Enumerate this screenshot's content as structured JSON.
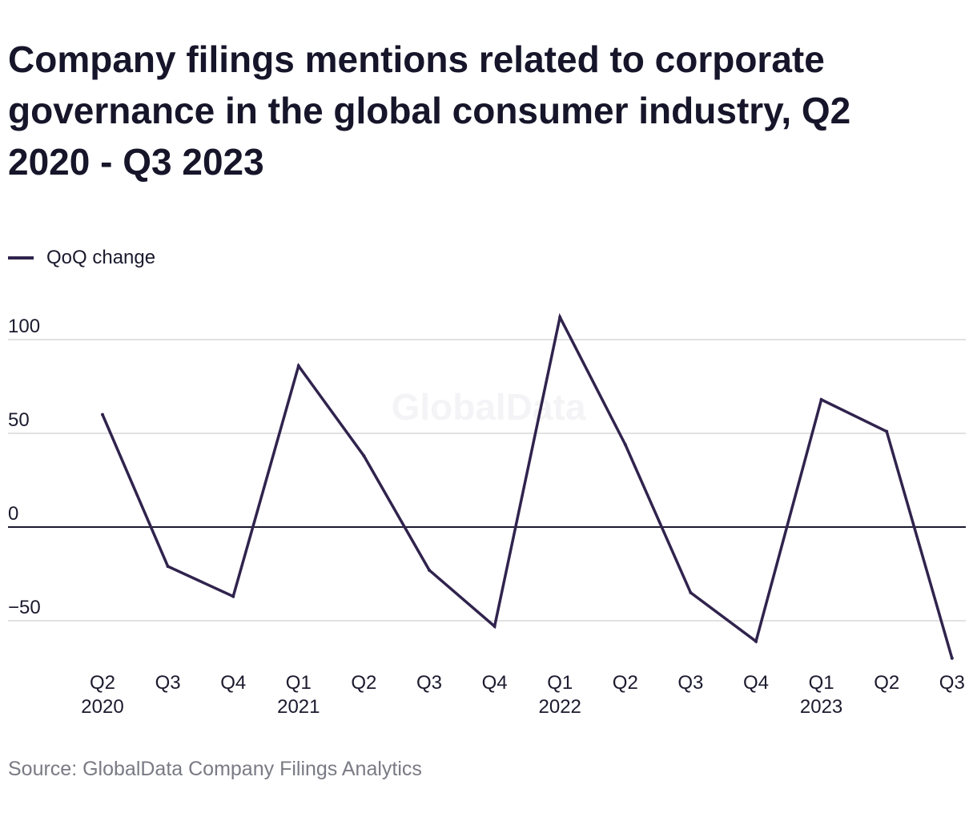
{
  "title": "Company filings mentions related to corporate governance in the global consumer industry, Q2 2020 - Q3 2023",
  "legend": {
    "label": "QoQ change"
  },
  "watermark": "GlobalData",
  "source": "Source: GlobalData Company Filings Analytics",
  "colors": {
    "series": "#30234d",
    "grid": "#d9d9d9",
    "zero_line": "#1b1a2e",
    "text": "#1b1a2e",
    "source_text": "#7a7a85"
  },
  "chart_data": {
    "type": "line",
    "title": "Company filings mentions related to corporate governance in the global consumer industry, Q2 2020 - Q3 2023",
    "xlabel": "",
    "ylabel": "",
    "categories": [
      [
        "Q2",
        "2020"
      ],
      [
        "Q3",
        ""
      ],
      [
        "Q4",
        ""
      ],
      [
        "Q1",
        "2021"
      ],
      [
        "Q2",
        ""
      ],
      [
        "Q3",
        ""
      ],
      [
        "Q4",
        ""
      ],
      [
        "Q1",
        "2022"
      ],
      [
        "Q2",
        ""
      ],
      [
        "Q3",
        ""
      ],
      [
        "Q4",
        ""
      ],
      [
        "Q1",
        "2023"
      ],
      [
        "Q2",
        ""
      ],
      [
        "Q3",
        ""
      ]
    ],
    "series": [
      {
        "name": "QoQ change",
        "values": [
          60,
          -21,
          -37,
          86,
          38,
          -23,
          -53,
          112,
          44,
          -35,
          -61,
          68,
          51,
          -70
        ]
      }
    ],
    "y_ticks": [
      100,
      50,
      0,
      -50
    ],
    "y_tick_labels": [
      "100",
      "50",
      "0",
      "−50"
    ],
    "ylim": [
      -70,
      112
    ],
    "grid": true,
    "legend_position": "top-left"
  }
}
